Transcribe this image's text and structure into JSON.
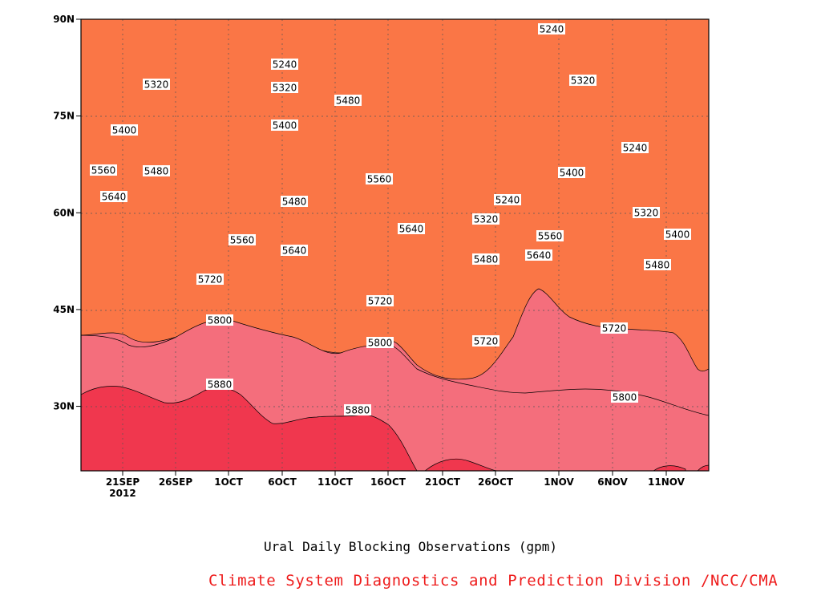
{
  "chart_data": {
    "type": "contour",
    "title": "Ural Daily Blocking Observations (gpm)",
    "x_axis": {
      "ticks": [
        "21SEP",
        "26SEP",
        "1OCT",
        "6OCT",
        "11OCT",
        "16OCT",
        "21OCT",
        "26OCT",
        "1NOV",
        "6NOV",
        "11NOV"
      ],
      "year": "2012"
    },
    "y_axis": {
      "ticks": [
        "30N",
        "45N",
        "60N",
        "75N",
        "90N"
      ],
      "ylim": [
        20,
        90
      ]
    },
    "contour_levels": [
      5240,
      5320,
      5400,
      5480,
      5560,
      5640,
      5720,
      5800,
      5880
    ],
    "contour_labels": [
      {
        "text": "5240"
      },
      {
        "text": "5240"
      },
      {
        "text": "5240"
      },
      {
        "text": "5240"
      },
      {
        "text": "5320"
      },
      {
        "text": "5320"
      },
      {
        "text": "5320"
      },
      {
        "text": "5320"
      },
      {
        "text": "5320"
      },
      {
        "text": "5400"
      },
      {
        "text": "5400"
      },
      {
        "text": "5400"
      },
      {
        "text": "5400"
      },
      {
        "text": "5480"
      },
      {
        "text": "5480"
      },
      {
        "text": "5480"
      },
      {
        "text": "5480"
      },
      {
        "text": "5480"
      },
      {
        "text": "5560"
      },
      {
        "text": "5560"
      },
      {
        "text": "5560"
      },
      {
        "text": "5560"
      },
      {
        "text": "5640"
      },
      {
        "text": "5640"
      },
      {
        "text": "5640"
      },
      {
        "text": "5640"
      },
      {
        "text": "5720"
      },
      {
        "text": "5720"
      },
      {
        "text": "5720"
      },
      {
        "text": "5720"
      },
      {
        "text": "5800"
      },
      {
        "text": "5800"
      },
      {
        "text": "5800"
      },
      {
        "text": "5880"
      },
      {
        "text": "5880"
      }
    ],
    "colors": {
      "lt5240": "#0b0f6d",
      "5240_5320": "#1414e6",
      "5320_5400": "#4b4bee",
      "5400_5480": "#5a8ee6",
      "5480_5560": "#64c3fa",
      "5560_5640": "#faf882",
      "5640_5720": "#fee09a",
      "5720_5800": "#fca46e",
      "5800_5880": "#fa7646",
      "5880_5960": "#f46e7c",
      "gt5960": "#f0374e"
    }
  },
  "footer": {
    "credit": "Climate System Diagnostics and Prediction Division /NCC/CMA"
  }
}
